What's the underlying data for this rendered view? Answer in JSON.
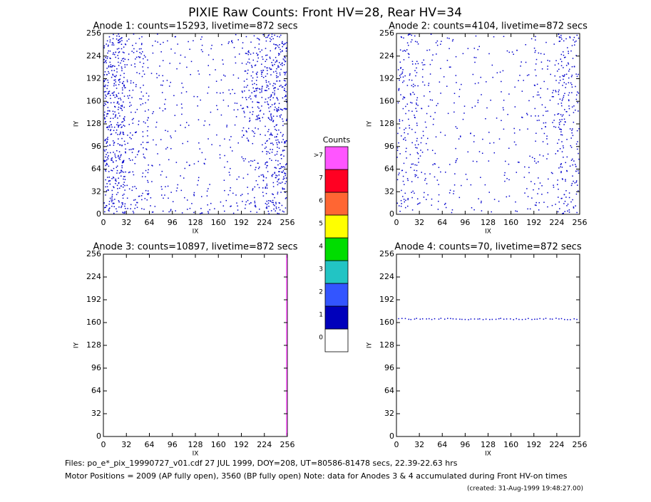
{
  "title": "PIXIE Raw Counts:  Front HV=28, Rear HV=34",
  "chart_data": [
    {
      "type": "density",
      "title": "Anode 1: counts=15293, livetime=872 secs",
      "xlabel": "IX",
      "ylabel": "IY",
      "xlim": [
        0,
        256
      ],
      "ylim": [
        0,
        256
      ],
      "xticks": [
        0,
        32,
        64,
        96,
        128,
        160,
        192,
        224,
        256
      ],
      "yticks": [
        0,
        32,
        64,
        96,
        128,
        160,
        192,
        224,
        256
      ],
      "color": "#0000cc",
      "density": [
        [
          50,
          20,
          10,
          8,
          8,
          10,
          25,
          45
        ],
        [
          55,
          22,
          8,
          6,
          6,
          8,
          35,
          55
        ],
        [
          60,
          22,
          8,
          6,
          6,
          8,
          40,
          55
        ],
        [
          60,
          20,
          8,
          6,
          6,
          8,
          35,
          50
        ],
        [
          60,
          20,
          8,
          6,
          6,
          8,
          20,
          45
        ],
        [
          55,
          20,
          8,
          6,
          6,
          8,
          15,
          45
        ],
        [
          55,
          20,
          8,
          6,
          6,
          8,
          18,
          45
        ],
        [
          50,
          25,
          14,
          12,
          12,
          14,
          22,
          45
        ]
      ],
      "stripes": []
    },
    {
      "type": "density",
      "title": "Anode 2: counts=4104, livetime=872 secs",
      "xlabel": "IX",
      "ylabel": "IY",
      "xlim": [
        0,
        256
      ],
      "ylim": [
        0,
        256
      ],
      "xticks": [
        0,
        32,
        64,
        96,
        128,
        160,
        192,
        224,
        256
      ],
      "yticks": [
        0,
        32,
        64,
        96,
        128,
        160,
        192,
        224,
        256
      ],
      "color": "#0000cc",
      "density": [
        [
          22,
          10,
          6,
          5,
          5,
          6,
          10,
          28
        ],
        [
          25,
          10,
          6,
          5,
          5,
          6,
          14,
          30
        ],
        [
          25,
          10,
          6,
          5,
          5,
          6,
          18,
          30
        ],
        [
          22,
          10,
          6,
          5,
          5,
          6,
          15,
          28
        ],
        [
          22,
          10,
          6,
          5,
          5,
          6,
          12,
          25
        ],
        [
          20,
          10,
          6,
          5,
          5,
          6,
          10,
          25
        ],
        [
          20,
          10,
          6,
          5,
          5,
          6,
          10,
          25
        ],
        [
          22,
          10,
          8,
          6,
          6,
          8,
          12,
          28
        ]
      ],
      "stripes": []
    },
    {
      "type": "density",
      "title": "Anode 3: counts=10897, livetime=872 secs",
      "xlabel": "IX",
      "ylabel": "IY",
      "xlim": [
        0,
        256
      ],
      "ylim": [
        0,
        256
      ],
      "xticks": [
        0,
        32,
        64,
        96,
        128,
        160,
        192,
        224,
        256
      ],
      "yticks": [
        0,
        32,
        64,
        96,
        128,
        160,
        192,
        224,
        256
      ],
      "color": "#0000cc",
      "density": [
        [
          0,
          0,
          0,
          0,
          0,
          0,
          0,
          0
        ],
        [
          0,
          0,
          0,
          0,
          0,
          0,
          0,
          0
        ],
        [
          0,
          0,
          0,
          0,
          0,
          0,
          0,
          0
        ],
        [
          0,
          0,
          0,
          0,
          0,
          0,
          0,
          0
        ],
        [
          0,
          0,
          0,
          0,
          0,
          0,
          0,
          0
        ],
        [
          0,
          0,
          0,
          0,
          0,
          0,
          0,
          0
        ],
        [
          0,
          0,
          0,
          0,
          0,
          0,
          0,
          0
        ],
        [
          0,
          0,
          0,
          0,
          0,
          0,
          0,
          0
        ]
      ],
      "stripes": [
        {
          "orientation": "vertical",
          "at": 255,
          "color": "#ff55ff"
        }
      ]
    },
    {
      "type": "density",
      "title": "Anode 4: counts=70, livetime=872 secs",
      "xlabel": "IX",
      "ylabel": "IY",
      "xlim": [
        0,
        256
      ],
      "ylim": [
        0,
        256
      ],
      "xticks": [
        0,
        32,
        64,
        96,
        128,
        160,
        192,
        224,
        256
      ],
      "yticks": [
        0,
        32,
        64,
        96,
        128,
        160,
        192,
        224,
        256
      ],
      "color": "#0000cc",
      "density": [
        [
          0,
          0,
          0,
          0,
          0,
          0,
          0,
          0
        ],
        [
          0,
          0,
          0,
          0,
          0,
          0,
          0,
          0
        ],
        [
          0,
          0,
          0,
          0,
          0,
          0,
          0,
          0
        ],
        [
          0,
          0,
          0,
          0,
          0,
          0,
          0,
          0
        ],
        [
          0,
          0,
          0,
          0,
          0,
          0,
          0,
          0
        ],
        [
          0,
          0,
          0,
          0,
          0,
          0,
          0,
          0
        ],
        [
          0,
          0,
          0,
          0,
          0,
          0,
          0,
          0
        ],
        [
          0,
          0,
          0,
          0,
          0,
          0,
          0,
          0
        ]
      ],
      "stripes": [
        {
          "orientation": "horizontal",
          "at": 165,
          "color": "#0000cc",
          "count": 60
        }
      ]
    }
  ],
  "colorbar": {
    "title": "Counts",
    "labels": [
      "0",
      "1",
      "2",
      "3",
      "4",
      "5",
      "6",
      "7",
      ">7"
    ],
    "colors": [
      "#ffffff",
      "#0000bb",
      "#3355ff",
      "#22c4c4",
      "#00dd00",
      "#ffff00",
      "#ff6633",
      "#ff0022",
      "#ff55ff"
    ]
  },
  "footer": {
    "files": "Files: po_e*_pix_19990727_v01.cdf   27 JUL 1999, DOY=208, UT=80586-81478 secs, 22.39-22.63 hrs",
    "motor": "Motor Positions = 2009 (AP fully open), 3560 (BP fully open)   Note: data for Anodes 3 & 4 accumulated during Front HV-on times",
    "created": "(created: 31-Aug-1999 19:48:27.00)"
  }
}
